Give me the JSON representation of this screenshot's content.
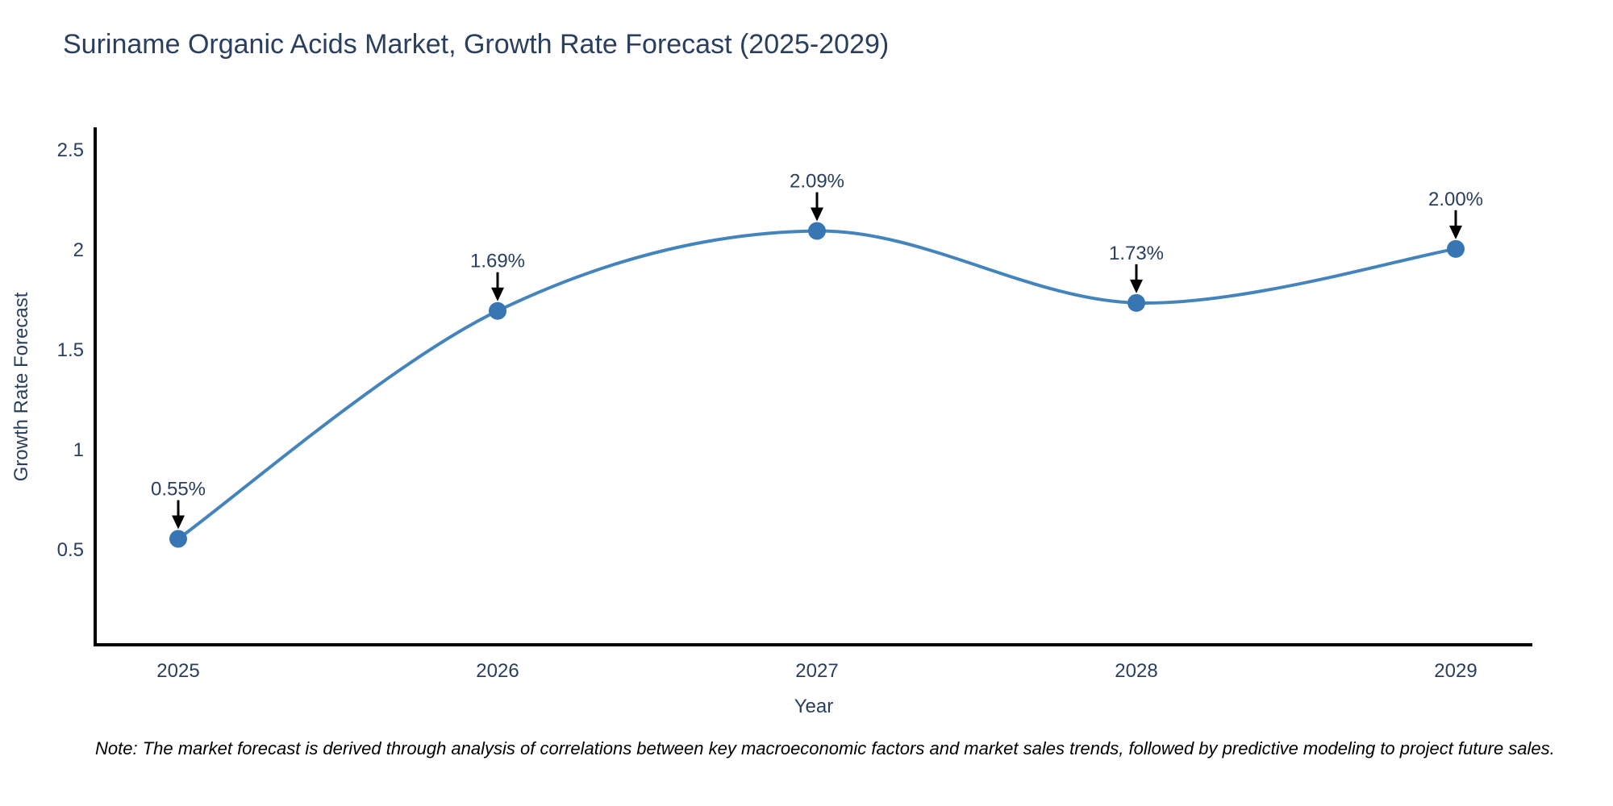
{
  "page": {
    "background_color": "#ffffff"
  },
  "title": {
    "text": "Suriname Organic Acids Market, Growth Rate Forecast (2025-2029)",
    "color": "#2a3f5f"
  },
  "note": {
    "text": "Note: The market forecast is derived through analysis of correlations between key macroeconomic factors and market sales trends, followed by predictive modeling to project future sales."
  },
  "chart_data": {
    "type": "line",
    "title": "Suriname Organic Acids Market, Growth Rate Forecast (2025-2029)",
    "xlabel": "Year",
    "ylabel": "Growth Rate Forecast",
    "categories": [
      "2025",
      "2026",
      "2027",
      "2028",
      "2029"
    ],
    "series": [
      {
        "name": "Growth Rate Forecast",
        "values": [
          0.55,
          1.69,
          2.09,
          1.73,
          2.0
        ]
      }
    ],
    "point_labels": [
      "0.55%",
      "1.69%",
      "2.09%",
      "1.73%",
      "2.00%"
    ],
    "y_ticks": [
      0.5,
      1,
      1.5,
      2,
      2.5
    ],
    "ylim": [
      0.02,
      2.6
    ],
    "grid": false,
    "legend": "none",
    "line_shape": "spline",
    "annotations": "value labels with black arrows pointing to each data point",
    "colors": {
      "line": "#4484bd",
      "marker": "#3776b2",
      "axis": "#000000",
      "text": "#2a3f5f",
      "annotation_arrow": "#000000"
    }
  }
}
